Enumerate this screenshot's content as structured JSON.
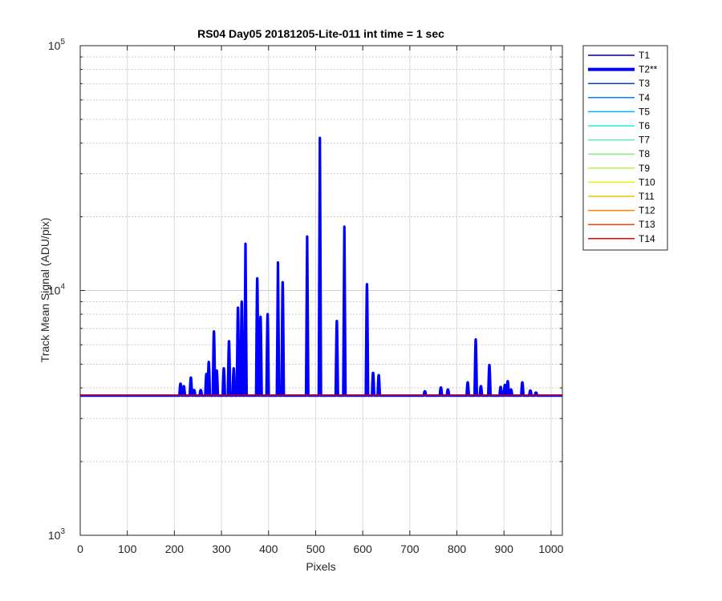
{
  "chart_data": {
    "type": "line",
    "title": "RS04 Day05 20181205-Lite-011 int time = 1 sec",
    "xlabel": "Pixels",
    "ylabel": "Track Mean Signal (ADU/pix)",
    "xlim": [
      0,
      1024
    ],
    "ylim": [
      1000,
      100000
    ],
    "yscale": "log",
    "grid": true,
    "legend_position": "outside-right",
    "x_ticks": [
      0,
      100,
      200,
      300,
      400,
      500,
      600,
      700,
      800,
      900,
      1000
    ],
    "x_tick_labels": [
      "0",
      "100",
      "200",
      "300",
      "400",
      "500",
      "600",
      "700",
      "800",
      "900",
      "1000"
    ],
    "y_ticks": [
      {
        "value": 1000,
        "base": "10",
        "exp": "3"
      },
      {
        "value": 10000,
        "base": "10",
        "exp": "4"
      },
      {
        "value": 100000,
        "base": "10",
        "exp": "5"
      }
    ],
    "baseline": 3720,
    "series": [
      {
        "name": "T1",
        "color": "#000080"
      },
      {
        "name": "T2**",
        "color": "#0000ff",
        "emphasized": true,
        "peaks": [
          [
            213,
            4150
          ],
          [
            220,
            4050
          ],
          [
            235,
            4400
          ],
          [
            242,
            3900
          ],
          [
            256,
            3900
          ],
          [
            268,
            4550
          ],
          [
            273,
            5100
          ],
          [
            284,
            6800
          ],
          [
            290,
            4700
          ],
          [
            305,
            4800
          ],
          [
            316,
            6200
          ],
          [
            326,
            4800
          ],
          [
            335,
            8500
          ],
          [
            343,
            9000
          ],
          [
            351,
            15500
          ],
          [
            376,
            11200
          ],
          [
            383,
            7800
          ],
          [
            398,
            8000
          ],
          [
            420,
            13000
          ],
          [
            430,
            10800
          ],
          [
            482,
            16600
          ],
          [
            509,
            42000
          ],
          [
            545,
            7500
          ],
          [
            561,
            18200
          ],
          [
            609,
            10600
          ],
          [
            622,
            4600
          ],
          [
            634,
            4500
          ],
          [
            732,
            3850
          ],
          [
            766,
            4000
          ],
          [
            781,
            3920
          ],
          [
            823,
            4200
          ],
          [
            840,
            6300
          ],
          [
            851,
            4050
          ],
          [
            869,
            4950
          ],
          [
            893,
            4020
          ],
          [
            902,
            4100
          ],
          [
            908,
            4250
          ],
          [
            915,
            3920
          ],
          [
            939,
            4200
          ],
          [
            956,
            3880
          ],
          [
            968,
            3800
          ]
        ]
      },
      {
        "name": "T3",
        "color": "#0040e0"
      },
      {
        "name": "T4",
        "color": "#0080ff"
      },
      {
        "name": "T5",
        "color": "#00b4ff"
      },
      {
        "name": "T6",
        "color": "#20e8e8"
      },
      {
        "name": "T7",
        "color": "#60e8c0"
      },
      {
        "name": "T8",
        "color": "#80f080"
      },
      {
        "name": "T9",
        "color": "#c0f040"
      },
      {
        "name": "T10",
        "color": "#f0f000"
      },
      {
        "name": "T11",
        "color": "#f0c000"
      },
      {
        "name": "T12",
        "color": "#ff8000"
      },
      {
        "name": "T13",
        "color": "#ff4000"
      },
      {
        "name": "T14",
        "color": "#f00000"
      }
    ]
  }
}
